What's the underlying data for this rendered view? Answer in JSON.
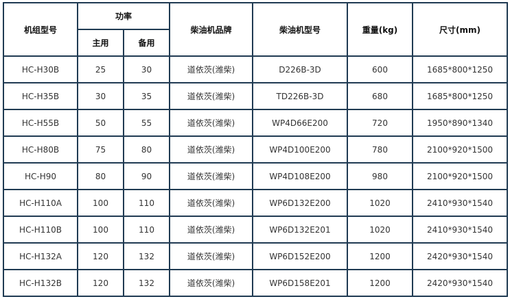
{
  "headers": {
    "model": "机组型号",
    "power": "功率",
    "prime": "主用",
    "standby": "备用",
    "brand": "柴油机品牌",
    "engine_model": "柴油机型号",
    "weight": "重量(kg)",
    "size": "尺寸(mm)"
  },
  "rows": [
    {
      "model": "HC-H30B",
      "prime": "25",
      "standby": "30",
      "brand": "道依茨(潍柴)",
      "engine": "D226B-3D",
      "weight": "600",
      "size": "1685*800*1250"
    },
    {
      "model": "HC-H35B",
      "prime": "30",
      "standby": "35",
      "brand": "道依茨(潍柴)",
      "engine": "TD226B-3D",
      "weight": "680",
      "size": "1685*800*1250"
    },
    {
      "model": "HC-H55B",
      "prime": "50",
      "standby": "55",
      "brand": "道依茨(潍柴)",
      "engine": "WP4D66E200",
      "weight": "720",
      "size": "1950*890*1340"
    },
    {
      "model": "HC-H80B",
      "prime": "75",
      "standby": "80",
      "brand": "道依茨(潍柴)",
      "engine": "WP4D100E200",
      "weight": "780",
      "size": "2100*920*1500"
    },
    {
      "model": "HC-H90",
      "prime": "80",
      "standby": "90",
      "brand": "道依茨(潍柴)",
      "engine": "WP4D108E200",
      "weight": "980",
      "size": "2100*920*1500"
    },
    {
      "model": "HC-H110A",
      "prime": "100",
      "standby": "110",
      "brand": "道依茨(潍柴)",
      "engine": "WP6D132E200",
      "weight": "1020",
      "size": "2410*930*1540"
    },
    {
      "model": "HC-H110B",
      "prime": "100",
      "standby": "110",
      "brand": "道依茨(潍柴)",
      "engine": "WP6D132E201",
      "weight": "1020",
      "size": "2410*930*1540"
    },
    {
      "model": "HC-H132A",
      "prime": "120",
      "standby": "132",
      "brand": "道依茨(潍柴)",
      "engine": "WP6D152E200",
      "weight": "1200",
      "size": "2420*930*1540"
    },
    {
      "model": "HC-H132B",
      "prime": "120",
      "standby": "132",
      "brand": "道依茨(潍柴)",
      "engine": "WP6D158E201",
      "weight": "1200",
      "size": "2420*930*1540"
    }
  ]
}
